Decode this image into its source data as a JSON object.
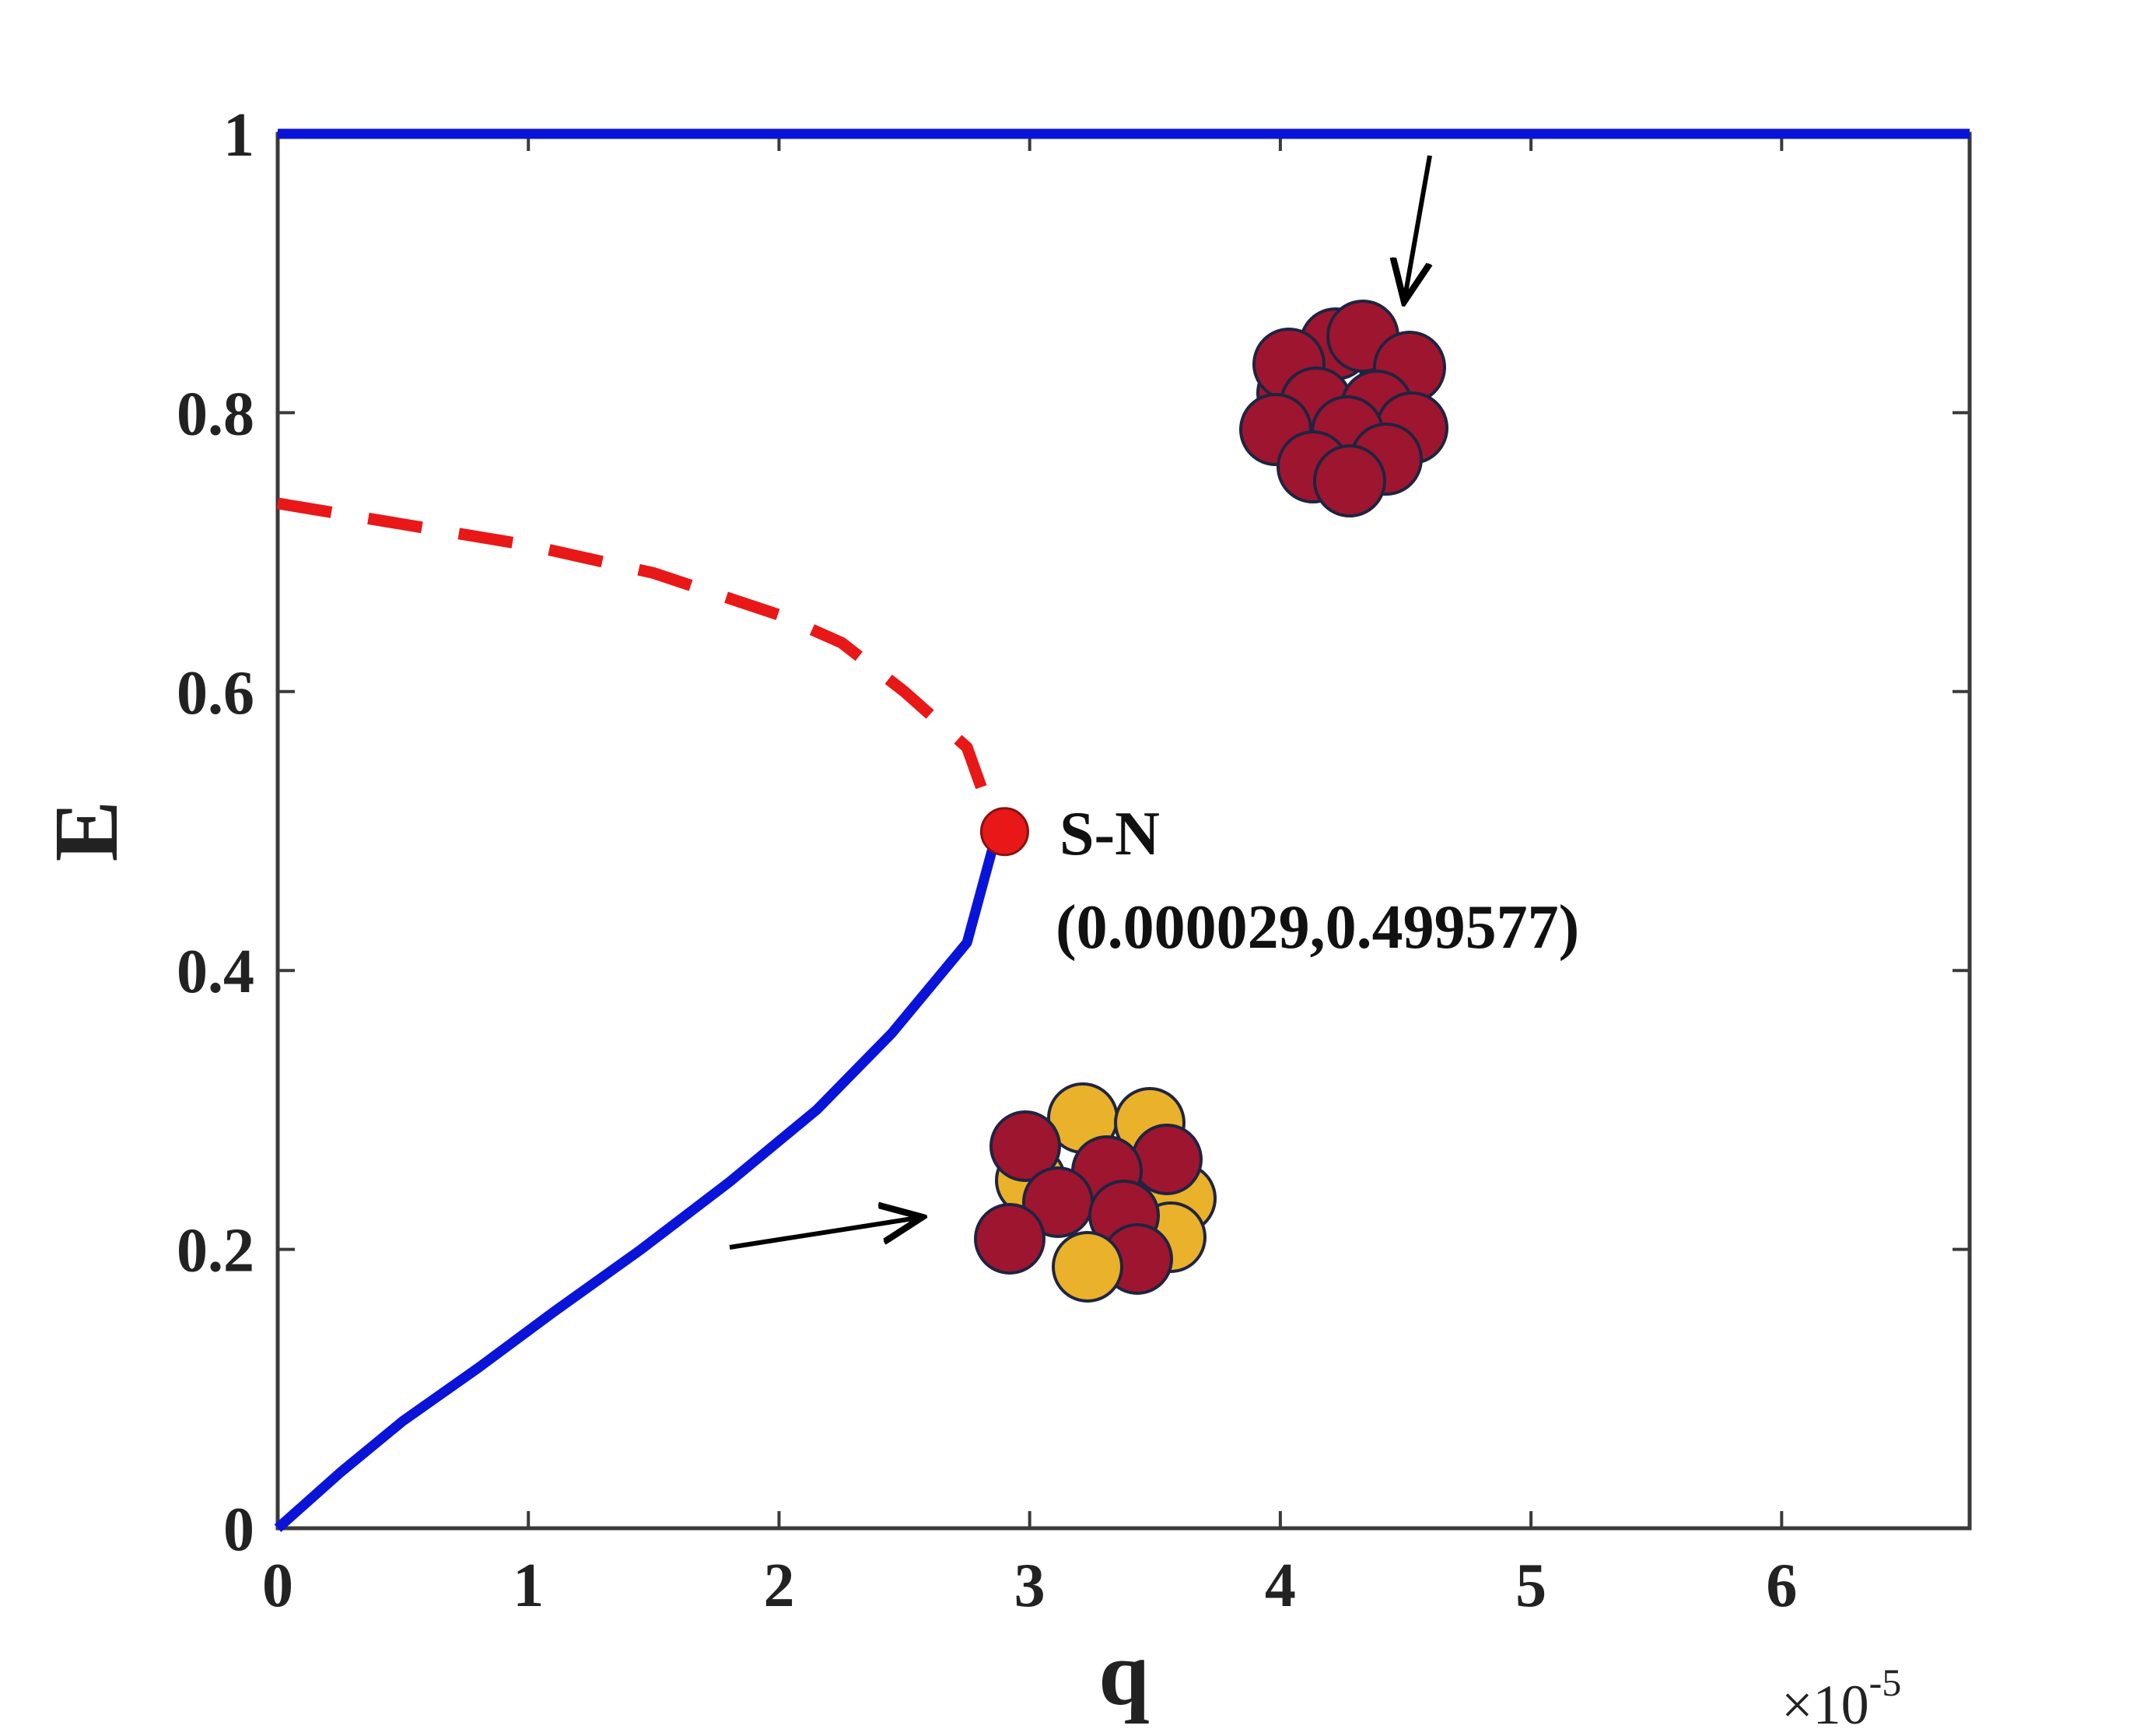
{
  "chart_data": {
    "type": "line",
    "title": "",
    "xlabel": "q",
    "ylabel": "E",
    "x_multiplier": {
      "base": "×10",
      "exponent": "-5"
    },
    "xlim": [
      0,
      6.75
    ],
    "ylim": [
      0,
      1
    ],
    "xticks": [
      0,
      1,
      2,
      3,
      4,
      5,
      6
    ],
    "xtick_labels": [
      "0",
      "1",
      "2",
      "3",
      "4",
      "5",
      "6"
    ],
    "yticks": [
      0,
      0.2,
      0.4,
      0.6,
      0.8,
      1
    ],
    "ytick_labels": [
      "0",
      "0.2",
      "0.4",
      "0.6",
      "0.8",
      "1"
    ],
    "grid": false,
    "series": [
      {
        "style": "solid",
        "color": "#0a14d8",
        "x": [
          0,
          6.75
        ],
        "y": [
          1,
          1
        ]
      },
      {
        "style": "solid",
        "color": "#0a14d8",
        "x": [
          0,
          0.25,
          0.5,
          0.8,
          1.1,
          1.45,
          1.8,
          2.15,
          2.45,
          2.75,
          2.87
        ],
        "y": [
          0,
          0.04,
          0.077,
          0.115,
          0.155,
          0.2,
          0.248,
          0.3,
          0.355,
          0.42,
          0.4996
        ]
      },
      {
        "style": "dashed",
        "color": "#e81818",
        "x": [
          0,
          0.5,
          1.0,
          1.5,
          2.0,
          2.25,
          2.5,
          2.75,
          2.87
        ],
        "y": [
          0.735,
          0.72,
          0.705,
          0.685,
          0.655,
          0.635,
          0.6,
          0.56,
          0.4996
        ]
      }
    ],
    "markers": [
      {
        "x": 2.9,
        "y": 0.4996,
        "color": "#e81818"
      }
    ],
    "annotations": [
      {
        "text": "S-N"
      },
      {
        "text": "(0.000029,0.499577)"
      }
    ],
    "icons": [
      {
        "name": "cluster-all-red-icon",
        "colors": [
          "#9e1530"
        ]
      },
      {
        "name": "cluster-mixed-icon",
        "colors": [
          "#9e1530",
          "#eab12a"
        ]
      }
    ]
  }
}
